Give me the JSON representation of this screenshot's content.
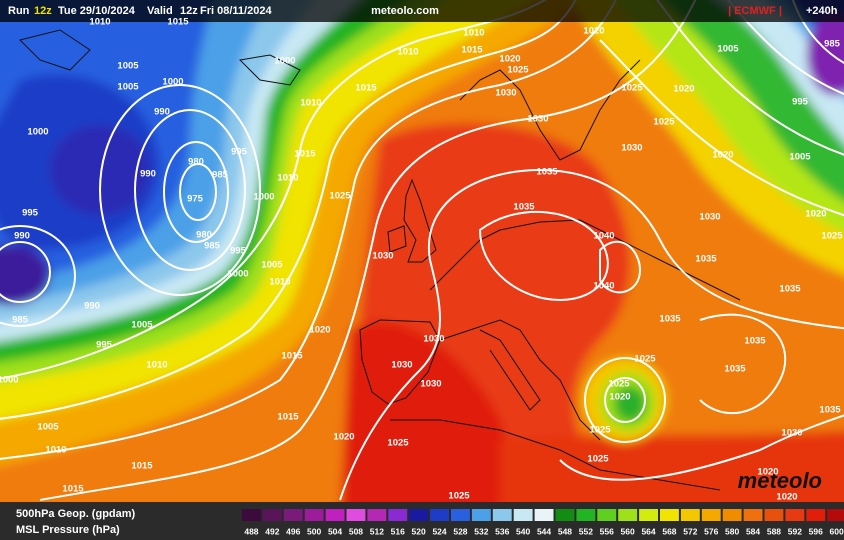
{
  "header": {
    "run_label": "Run",
    "run_hour": "12z",
    "run_date": "Tue 29/10/2024",
    "valid_label": "Valid",
    "valid_hour": "12z",
    "valid_date": "Fri 08/11/2024",
    "site": "meteolo.com",
    "model": "| ECMWF |",
    "lead": "+240h"
  },
  "legend": {
    "field": "500hPa Geop. (gpdam)",
    "pressure": "MSL Pressure (hPa)",
    "scale": [
      488,
      492,
      496,
      500,
      504,
      508,
      512,
      516,
      520,
      524,
      528,
      532,
      536,
      540,
      544,
      548,
      552,
      556,
      560,
      564,
      568,
      572,
      576,
      580,
      584,
      588,
      592,
      596,
      600
    ]
  },
  "logo": "meteolo",
  "isobar_labels": [
    "1010",
    "1015",
    "1005",
    "1000",
    "1000",
    "1010",
    "1010",
    "1015",
    "1020",
    "1025",
    "1020",
    "1005",
    "985",
    "1020",
    "1025",
    "995",
    "1025",
    "1005",
    "990",
    "1000",
    "1010",
    "1015",
    "1030",
    "1030",
    "1030",
    "1020",
    "1005",
    "995",
    "980",
    "990",
    "985",
    "975",
    "1015",
    "1010",
    "1025",
    "1035",
    "1035",
    "1030",
    "1020",
    "1025",
    "995",
    "990",
    "980",
    "985",
    "995",
    "1000",
    "1000",
    "1005",
    "1010",
    "1040",
    "1030",
    "1035",
    "1035",
    "1040",
    "990",
    "985",
    "1005",
    "995",
    "1020",
    "1035",
    "1035",
    "1030",
    "1025",
    "1030",
    "1015",
    "1010",
    "1030",
    "1025",
    "1035",
    "1020",
    "1015",
    "1035",
    "1000",
    "1005",
    "1010",
    "1020",
    "1025",
    "1025",
    "1030",
    "1025",
    "1015",
    "1015",
    "1025",
    "1020",
    "1020"
  ]
}
